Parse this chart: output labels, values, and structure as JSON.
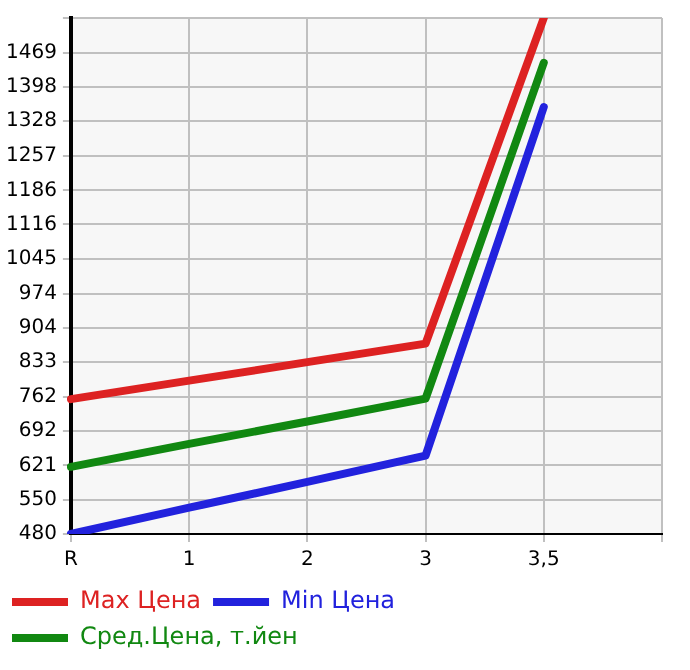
{
  "chart_data": {
    "type": "line",
    "categories": [
      "R",
      "1",
      "2",
      "3",
      "3,5",
      null
    ],
    "series": [
      {
        "name": "Max Цена",
        "color": "#dd2222",
        "values": [
          757,
          795,
          833,
          871,
          1540,
          null
        ]
      },
      {
        "name": "Min Цена",
        "color": "#2222dd",
        "values": [
          480,
          534,
          587,
          641,
          1357,
          null
        ]
      },
      {
        "name": "Сред.Цена, т.йен",
        "color": "#118811",
        "values": [
          618,
          665,
          711,
          758,
          1448,
          null
        ]
      }
    ],
    "ylim": [
      480,
      1540
    ],
    "yticks": [
      480,
      550,
      621,
      692,
      762,
      833,
      904,
      974,
      1045,
      1116,
      1186,
      1257,
      1328,
      1398,
      1469,
      {
        "value": 1540,
        "label": null
      }
    ],
    "grid": true,
    "legend": "bottom",
    "marker": "none",
    "line_style": "solid"
  }
}
